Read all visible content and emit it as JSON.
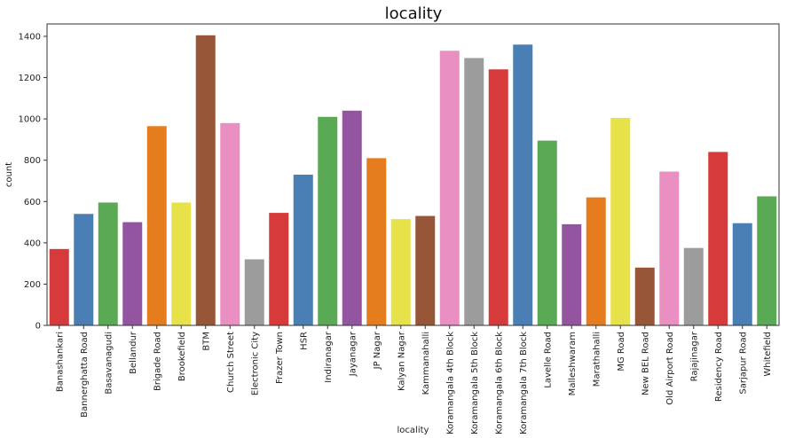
{
  "chart_data": {
    "type": "bar",
    "title": "locality",
    "xlabel": "locality",
    "ylabel": "count",
    "ylim": [
      0,
      1460
    ],
    "yticks": [
      0,
      200,
      400,
      600,
      800,
      1000,
      1200,
      1400
    ],
    "grid": false,
    "categories": [
      "Banashankari",
      "Bannerghatta Road",
      "Basavanagudi",
      "Bellandur",
      "Brigade Road",
      "Brookefield",
      "BTM",
      "Church Street",
      "Electronic City",
      "Frazer Town",
      "HSR",
      "Indiranagar",
      "Jayanagar",
      "JP Nagar",
      "Kalyan Nagar",
      "Kammanahalli",
      "Koramangala 4th Block",
      "Koramangala 5th Block",
      "Koramangala 6th Block",
      "Koramangala 7th Block",
      "Lavelle Road",
      "Malleshwaram",
      "Marathahalli",
      "MG Road",
      "New BEL Road",
      "Old Airport Road",
      "Rajajinagar",
      "Residency Road",
      "Sarjapur Road",
      "Whitefield"
    ],
    "values": [
      370,
      540,
      595,
      500,
      965,
      595,
      1405,
      980,
      320,
      545,
      730,
      1010,
      1040,
      810,
      515,
      530,
      1330,
      1295,
      1240,
      1360,
      895,
      490,
      620,
      1005,
      280,
      745,
      375,
      840,
      495,
      625
    ],
    "colors": [
      "#d63a3a",
      "#4a7fb5",
      "#5aa954",
      "#9355a0",
      "#e57d1f",
      "#e8e24a",
      "#965637",
      "#ea8fc2",
      "#9c9c9c",
      "#d63a3a",
      "#4a7fb5",
      "#5aa954",
      "#9355a0",
      "#e57d1f",
      "#e8e24a",
      "#965637",
      "#ea8fc2",
      "#9c9c9c",
      "#d63a3a",
      "#4a7fb5",
      "#5aa954",
      "#9355a0",
      "#e57d1f",
      "#e8e24a",
      "#965637",
      "#ea8fc2",
      "#9c9c9c",
      "#d63a3a",
      "#4a7fb5",
      "#5aa954"
    ]
  }
}
